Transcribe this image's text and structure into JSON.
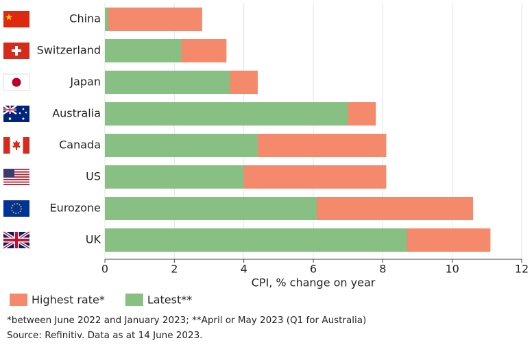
{
  "chart_data": {
    "type": "bar",
    "orientation": "horizontal",
    "overlap": true,
    "categories": [
      "China",
      "Switzerland",
      "Japan",
      "Australia",
      "Canada",
      "US",
      "Eurozone",
      "UK"
    ],
    "series": [
      {
        "name": "Highest rate*",
        "color": "#f4896b",
        "values": [
          2.8,
          3.5,
          4.4,
          7.8,
          8.1,
          8.1,
          10.6,
          11.1
        ]
      },
      {
        "name": "Latest**",
        "color": "#88bf82",
        "values": [
          0.1,
          2.2,
          3.6,
          7.0,
          4.4,
          4.0,
          6.1,
          8.7
        ]
      }
    ],
    "xlim": [
      0,
      12
    ],
    "xticks": [
      0,
      2,
      4,
      6,
      8,
      10,
      12
    ],
    "grid": true,
    "xlabel": "CPI, % change on year",
    "notes": [
      "*between June 2022 and January 2023; **April or May 2023 (Q1 for Australia)",
      "Source: Refinitiv. Data as at 14 June 2023."
    ]
  }
}
